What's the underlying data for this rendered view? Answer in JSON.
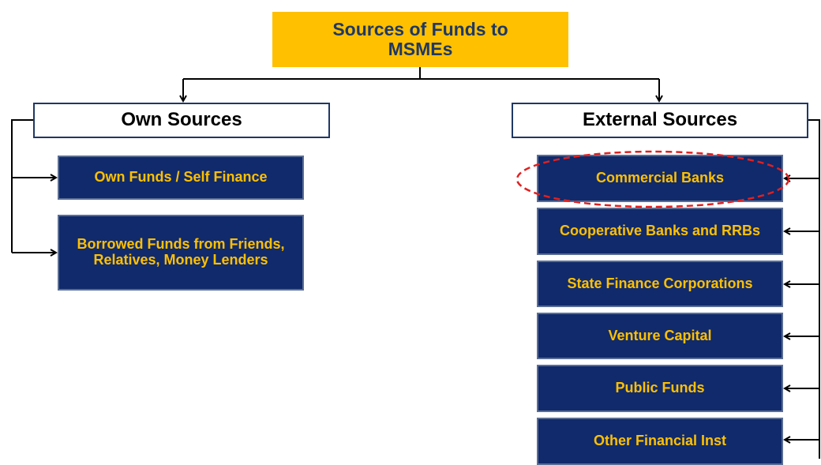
{
  "root": {
    "label": "Sources of Funds to MSMEs"
  },
  "branches": [
    {
      "label": "Own Sources",
      "children": [
        "Own Funds / Self Finance",
        "Borrowed Funds from Friends, Relatives, Money Lenders"
      ]
    },
    {
      "label": "External Sources",
      "children": [
        "Commercial Banks",
        "Cooperative Banks and RRBs",
        "State Finance Corporations",
        "Venture Capital",
        "Public Funds",
        "Other Financial Inst"
      ]
    }
  ]
}
